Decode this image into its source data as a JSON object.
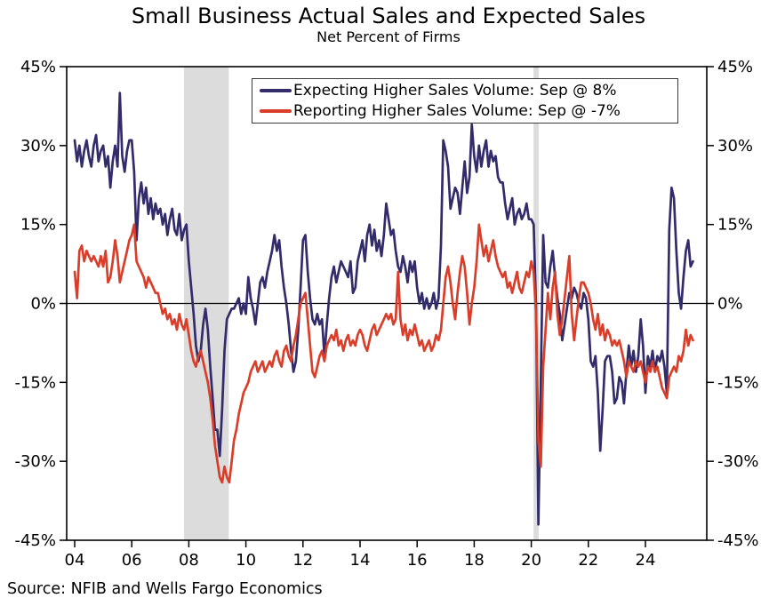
{
  "title": "Small Business Actual Sales and Expected Sales",
  "subtitle": "Net Percent of Firms",
  "source": "Source: NFIB and Wells Fargo Economics",
  "legend": [
    {
      "label": "Expecting Higher Sales Volume: Sep @ 8%",
      "color": "#332C6B"
    },
    {
      "label": "Reporting Higher Sales Volume: Sep @ -7%",
      "color": "#D93E2A"
    }
  ],
  "axes": {
    "y_tick_labels": [
      "45%",
      "30%",
      "15%",
      "0%",
      "-15%",
      "-30%",
      "-45%"
    ],
    "y_tick_values": [
      45,
      30,
      15,
      0,
      -15,
      -30,
      -45
    ],
    "x_tick_labels": [
      "04",
      "06",
      "08",
      "10",
      "12",
      "14",
      "16",
      "18",
      "20",
      "22",
      "24"
    ],
    "x_tick_values": [
      2004,
      2006,
      2008,
      2010,
      2012,
      2014,
      2016,
      2018,
      2020,
      2022,
      2024
    ],
    "y_min": -45,
    "y_max": 45
  },
  "chart_data": {
    "type": "line",
    "frequency": "monthly",
    "x_start_year": 2004,
    "x_end_label": "Sep 2025",
    "title": "Small Business Actual Sales and Expected Sales",
    "ylabel": "Net Percent of Firms",
    "ylim": [
      -45,
      45
    ],
    "grid": "zero-line-only",
    "legend_position": "top-center-boxed",
    "band_color": "#DCDCDC",
    "recession_bands": [
      {
        "start": 2007.83,
        "end": 2009.4
      },
      {
        "start": 2020.08,
        "end": 2020.26
      }
    ],
    "series": [
      {
        "name": "Expecting Higher Sales Volume",
        "latest_label": "Sep @ 8%",
        "latest_value": 8,
        "color": "#332C6B",
        "values": [
          31,
          27,
          30,
          26,
          29,
          31,
          28,
          26,
          30,
          32,
          27,
          29,
          30,
          26,
          28,
          22,
          27,
          30,
          26,
          40,
          28,
          25,
          29,
          31,
          31,
          25,
          12,
          20,
          23,
          19,
          22,
          17,
          20,
          16,
          19,
          17,
          18,
          15,
          17,
          13,
          16,
          18,
          14,
          13,
          17,
          12,
          14,
          15,
          8,
          3,
          -2,
          -8,
          -11,
          -9,
          -4,
          -1,
          -5,
          -12,
          -18,
          -24,
          -24,
          -29,
          -20,
          -9,
          -3,
          -2,
          -1,
          -1,
          0,
          1,
          -2,
          0,
          -2,
          5,
          1,
          -1,
          -4,
          0,
          4,
          5,
          3,
          6,
          8,
          10,
          13,
          10,
          12,
          7,
          3,
          0,
          -4,
          -9,
          -13,
          -11,
          -5,
          3,
          12,
          13,
          6,
          1,
          -3,
          -4,
          -2,
          -4,
          -3,
          -10,
          -4,
          1,
          5,
          7,
          4,
          6,
          8,
          7,
          6,
          5,
          8,
          2,
          3,
          8,
          10,
          12,
          8,
          13,
          15,
          11,
          14,
          10,
          12,
          9,
          13,
          19,
          16,
          13,
          14,
          10,
          7,
          6,
          9,
          7,
          4,
          8,
          6,
          8,
          3,
          0,
          2,
          -1,
          1,
          -1,
          0,
          2,
          -1,
          1,
          11,
          31,
          29,
          26,
          18,
          20,
          22,
          21,
          17,
          22,
          27,
          21,
          24,
          34,
          28,
          25,
          30,
          26,
          29,
          31,
          26,
          29,
          27,
          28,
          24,
          23,
          23,
          19,
          16,
          18,
          20,
          15,
          17,
          18,
          16,
          17,
          19,
          16,
          16,
          15,
          -1,
          -42,
          -15,
          13,
          4,
          3,
          7,
          10,
          5,
          1,
          -2,
          -7,
          -4,
          -1,
          2,
          1,
          3,
          2,
          0,
          -1,
          2,
          1,
          -3,
          -11,
          -12,
          -10,
          -17,
          -28,
          -20,
          -11,
          -10,
          -10,
          -13,
          -19,
          -18,
          -14,
          -15,
          -19,
          -13,
          -8,
          -12,
          -9,
          -13,
          -10,
          -3,
          -8,
          -17,
          -10,
          -12,
          -9,
          -13,
          -10,
          -11,
          -9,
          -12,
          -17,
          14,
          22,
          20,
          10,
          2,
          -1,
          5,
          10,
          12,
          7,
          8
        ]
      },
      {
        "name": "Reporting Higher Sales Volume",
        "latest_label": "Sep @ -7%",
        "latest_value": -7,
        "color": "#D93E2A",
        "values": [
          6,
          1,
          10,
          11,
          8,
          10,
          9,
          8,
          9,
          8,
          7,
          9,
          7,
          10,
          4,
          5,
          8,
          12,
          9,
          4,
          6,
          8,
          10,
          12,
          13,
          15,
          8,
          7,
          6,
          5,
          3,
          5,
          4,
          3,
          2,
          2,
          0,
          -2,
          -1,
          -3,
          -2,
          -4,
          -3,
          -5,
          -2,
          -4,
          -5,
          -3,
          -6,
          -9,
          -11,
          -12,
          -10,
          -9,
          -11,
          -13,
          -15,
          -18,
          -22,
          -27,
          -30,
          -33,
          -34,
          -31,
          -33,
          -34,
          -30,
          -26,
          -24,
          -21,
          -19,
          -17,
          -16,
          -15,
          -13,
          -12,
          -11,
          -13,
          -12,
          -11,
          -13,
          -12,
          -11,
          -12,
          -10,
          -9,
          -11,
          -12,
          -9,
          -8,
          -10,
          -11,
          -8,
          -6,
          -3,
          0,
          1,
          2,
          -3,
          -8,
          -13,
          -14,
          -12,
          -10,
          -9,
          -11,
          -8,
          -7,
          -6,
          -7,
          -5,
          -8,
          -7,
          -9,
          -7,
          -6,
          -8,
          -7,
          -8,
          -6,
          -5,
          -6,
          -8,
          -9,
          -7,
          -5,
          -4,
          -6,
          -5,
          -4,
          -3,
          -2,
          -3,
          -2,
          -4,
          -3,
          6,
          -3,
          -6,
          -4,
          -7,
          -5,
          -6,
          -4,
          -6,
          -8,
          -7,
          -9,
          -8,
          -7,
          -9,
          -8,
          -6,
          -7,
          -5,
          0,
          5,
          7,
          4,
          0,
          -3,
          2,
          6,
          9,
          7,
          2,
          -4,
          0,
          3,
          8,
          15,
          12,
          9,
          11,
          8,
          10,
          12,
          9,
          7,
          6,
          5,
          6,
          3,
          4,
          2,
          4,
          6,
          3,
          2,
          4,
          6,
          5,
          8,
          6,
          -2,
          -26,
          -31,
          -12,
          -5,
          2,
          -3,
          3,
          6,
          -2,
          -6,
          -3,
          1,
          5,
          9,
          -2,
          -7,
          -3,
          1,
          4,
          4,
          3,
          2,
          0,
          -3,
          -5,
          -2,
          -6,
          -4,
          -7,
          -5,
          -6,
          -8,
          -7,
          -8,
          -7,
          -9,
          -11,
          -14,
          -11,
          -12,
          -13,
          -11,
          -12,
          -11,
          -13,
          -15,
          -12,
          -13,
          -11,
          -13,
          -12,
          -14,
          -16,
          -17,
          -18,
          -14,
          -13,
          -12,
          -13,
          -10,
          -11,
          -9,
          -5,
          -8,
          -6,
          -7
        ]
      }
    ]
  }
}
